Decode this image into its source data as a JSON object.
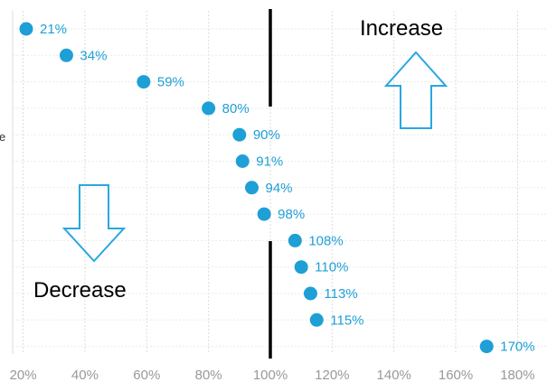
{
  "chart_data": {
    "type": "scatter",
    "title": "",
    "xlabel": "",
    "ylabel": "",
    "x_ticks": [
      "20%",
      "40%",
      "60%",
      "80%",
      "100%",
      "120%",
      "140%",
      "160%",
      "180%"
    ],
    "xlim": [
      18,
      184
    ],
    "grid": true,
    "reference_line_x": 100,
    "left_edge_label": "e",
    "points": [
      {
        "value": 21,
        "label": "21%"
      },
      {
        "value": 34,
        "label": "34%"
      },
      {
        "value": 59,
        "label": "59%"
      },
      {
        "value": 80,
        "label": "80%"
      },
      {
        "value": 90,
        "label": "90%"
      },
      {
        "value": 91,
        "label": "91%"
      },
      {
        "value": 94,
        "label": "94%"
      },
      {
        "value": 98,
        "label": "98%"
      },
      {
        "value": 108,
        "label": "108%"
      },
      {
        "value": 110,
        "label": "110%"
      },
      {
        "value": 113,
        "label": "113%"
      },
      {
        "value": 115,
        "label": "115%"
      },
      {
        "value": 170,
        "label": "170%"
      }
    ],
    "annotations": {
      "increase": "Increase",
      "decrease": "Decrease"
    },
    "colors": {
      "point": "#1e9fd6",
      "label": "#1e9fd6",
      "arrow": "#29a7e1",
      "reference_line": "#000000",
      "grid": "#dcdcdc"
    }
  }
}
